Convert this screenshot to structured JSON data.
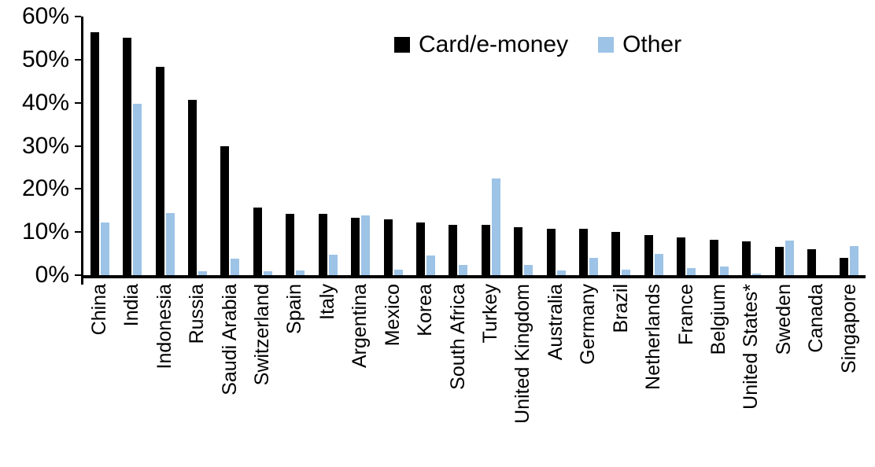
{
  "chart_data": {
    "type": "bar",
    "title": "",
    "xlabel": "",
    "ylabel": "",
    "ylim": [
      0,
      60
    ],
    "ytick_values": [
      60,
      50,
      40,
      30,
      20,
      10,
      0
    ],
    "ytick_labels": [
      "60%",
      "50%",
      "40%",
      "30%",
      "20%",
      "10%",
      "0%"
    ],
    "grid": false,
    "legend_position": "top",
    "categories": [
      "China",
      "India",
      "Indonesia",
      "Russia",
      "Saudi Arabia",
      "Switzerland",
      "Spain",
      "Italy",
      "Argentina",
      "Mexico",
      "Korea",
      "South Africa",
      "Turkey",
      "United Kingdom",
      "Australia",
      "Germany",
      "Brazil",
      "Netherlands",
      "France",
      "Belgium",
      "United States*",
      "Sweden",
      "Canada",
      "Singapore"
    ],
    "series": [
      {
        "name": "Card/e-money",
        "color": "#000000",
        "values": [
          56.3,
          55.1,
          48.4,
          40.6,
          29.9,
          15.7,
          14.3,
          14.2,
          13.4,
          12.9,
          12.2,
          11.7,
          11.6,
          11.1,
          10.8,
          10.7,
          10.1,
          9.3,
          8.7,
          8.2,
          7.9,
          6.6,
          6.0,
          4.0
        ]
      },
      {
        "name": "Other",
        "color": "#9DC3E6",
        "values": [
          12.3,
          39.7,
          14.4,
          1.0,
          3.9,
          0.9,
          1.1,
          4.8,
          13.9,
          1.2,
          4.5,
          2.3,
          22.5,
          2.3,
          1.1,
          4.0,
          1.2,
          4.9,
          1.6,
          2.0,
          0.3,
          8.1,
          0.0,
          6.7
        ]
      }
    ]
  }
}
